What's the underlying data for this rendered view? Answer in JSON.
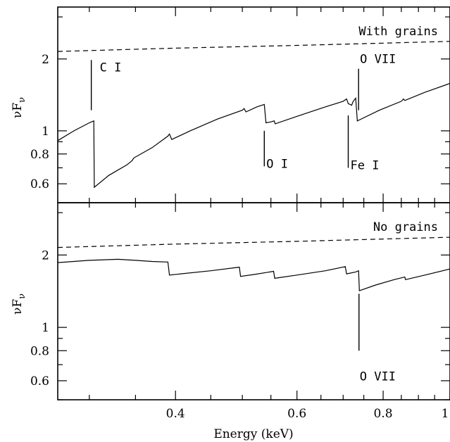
{
  "chart_data": {
    "type": "line",
    "xlabel": "Energy (keV)",
    "xscale": "log",
    "xlim": [
      0.27,
      1.0
    ],
    "xticks_major": [
      0.4,
      0.6,
      0.8,
      1
    ],
    "xtick_labels": [
      "0.4",
      "0.6",
      "0.8",
      "1"
    ],
    "panels": [
      {
        "panel_label": "With grains",
        "ylabel_main": "νF",
        "ylabel_sub": "ν",
        "yscale": "log",
        "ylim": [
          0.5,
          3.3
        ],
        "ytick_labels": [
          {
            "v": 0.6,
            "t": "0.6"
          },
          {
            "v": 0.8,
            "t": "0.8"
          },
          {
            "v": 1,
            "t": "1"
          },
          {
            "v": 2,
            "t": "2"
          }
        ],
        "series": [
          {
            "style": "dashed",
            "points": [
              [
                0.27,
                2.15
              ],
              [
                0.4,
                2.22
              ],
              [
                0.6,
                2.28
              ],
              [
                0.8,
                2.33
              ],
              [
                1.0,
                2.37
              ]
            ]
          },
          {
            "style": "solid",
            "points": [
              [
                0.27,
                0.91
              ],
              [
                0.285,
                1.0
              ],
              [
                0.3,
                1.08
              ],
              [
                0.3045,
                1.1
              ],
              [
                0.305,
                0.58
              ],
              [
                0.32,
                0.65
              ],
              [
                0.34,
                0.72
              ],
              [
                0.346,
                0.75
              ],
              [
                0.348,
                0.77
              ],
              [
                0.37,
                0.85
              ],
              [
                0.39,
                0.95
              ],
              [
                0.392,
                0.97
              ],
              [
                0.395,
                0.92
              ],
              [
                0.42,
                1.0
              ],
              [
                0.46,
                1.12
              ],
              [
                0.5,
                1.22
              ],
              [
                0.503,
                1.24
              ],
              [
                0.506,
                1.2
              ],
              [
                0.525,
                1.26
              ],
              [
                0.538,
                1.29
              ],
              [
                0.541,
                1.08
              ],
              [
                0.55,
                1.09
              ],
              [
                0.556,
                1.1
              ],
              [
                0.558,
                1.07
              ],
              [
                0.6,
                1.15
              ],
              [
                0.66,
                1.26
              ],
              [
                0.7,
                1.33
              ],
              [
                0.708,
                1.36
              ],
              [
                0.712,
                1.3
              ],
              [
                0.72,
                1.28
              ],
              [
                0.724,
                1.33
              ],
              [
                0.73,
                1.37
              ],
              [
                0.734,
                1.1
              ],
              [
                0.79,
                1.22
              ],
              [
                0.85,
                1.33
              ],
              [
                0.856,
                1.36
              ],
              [
                0.86,
                1.34
              ],
              [
                0.92,
                1.45
              ],
              [
                1.0,
                1.58
              ]
            ]
          }
        ],
        "annotations": [
          {
            "text": "C I",
            "x": 0.302,
            "y_top": 1.98,
            "y_bottom": 1.22,
            "label_pos": "right-top"
          },
          {
            "text": "O I",
            "x": 0.538,
            "y_top": 1.0,
            "y_bottom": 0.71,
            "label_pos": "right-bottom"
          },
          {
            "text": "Fe I",
            "x": 0.712,
            "y_top": 1.16,
            "y_bottom": 0.7,
            "label_pos": "right-bottom"
          },
          {
            "text": "O VII",
            "x": 0.737,
            "y_top": 1.82,
            "y_bottom": 1.22,
            "label_pos": "top"
          }
        ]
      },
      {
        "panel_label": "No grains",
        "ylabel_main": "νF",
        "ylabel_sub": "ν",
        "yscale": "log",
        "ylim": [
          0.5,
          3.3
        ],
        "ytick_labels": [
          {
            "v": 0.6,
            "t": "0.6"
          },
          {
            "v": 0.8,
            "t": "0.8"
          },
          {
            "v": 1,
            "t": "1"
          },
          {
            "v": 2,
            "t": "2"
          }
        ],
        "series": [
          {
            "style": "dashed",
            "points": [
              [
                0.27,
                2.15
              ],
              [
                0.4,
                2.22
              ],
              [
                0.6,
                2.28
              ],
              [
                0.8,
                2.33
              ],
              [
                1.0,
                2.37
              ]
            ]
          },
          {
            "style": "solid",
            "points": [
              [
                0.27,
                1.86
              ],
              [
                0.3,
                1.9
              ],
              [
                0.33,
                1.92
              ],
              [
                0.35,
                1.9
              ],
              [
                0.37,
                1.88
              ],
              [
                0.39,
                1.87
              ],
              [
                0.392,
                1.65
              ],
              [
                0.45,
                1.72
              ],
              [
                0.495,
                1.78
              ],
              [
                0.497,
                1.63
              ],
              [
                0.52,
                1.66
              ],
              [
                0.555,
                1.71
              ],
              [
                0.557,
                1.6
              ],
              [
                0.6,
                1.65
              ],
              [
                0.66,
                1.72
              ],
              [
                0.705,
                1.79
              ],
              [
                0.708,
                1.67
              ],
              [
                0.73,
                1.7
              ],
              [
                0.737,
                1.72
              ],
              [
                0.739,
                1.42
              ],
              [
                0.78,
                1.5
              ],
              [
                0.83,
                1.58
              ],
              [
                0.86,
                1.62
              ],
              [
                0.862,
                1.58
              ],
              [
                0.92,
                1.65
              ],
              [
                1.0,
                1.75
              ]
            ]
          }
        ],
        "annotations": [
          {
            "text": "O VII",
            "x": 0.738,
            "y_top": 1.38,
            "y_bottom": 0.8,
            "label_pos": "bottom"
          }
        ]
      }
    ]
  }
}
